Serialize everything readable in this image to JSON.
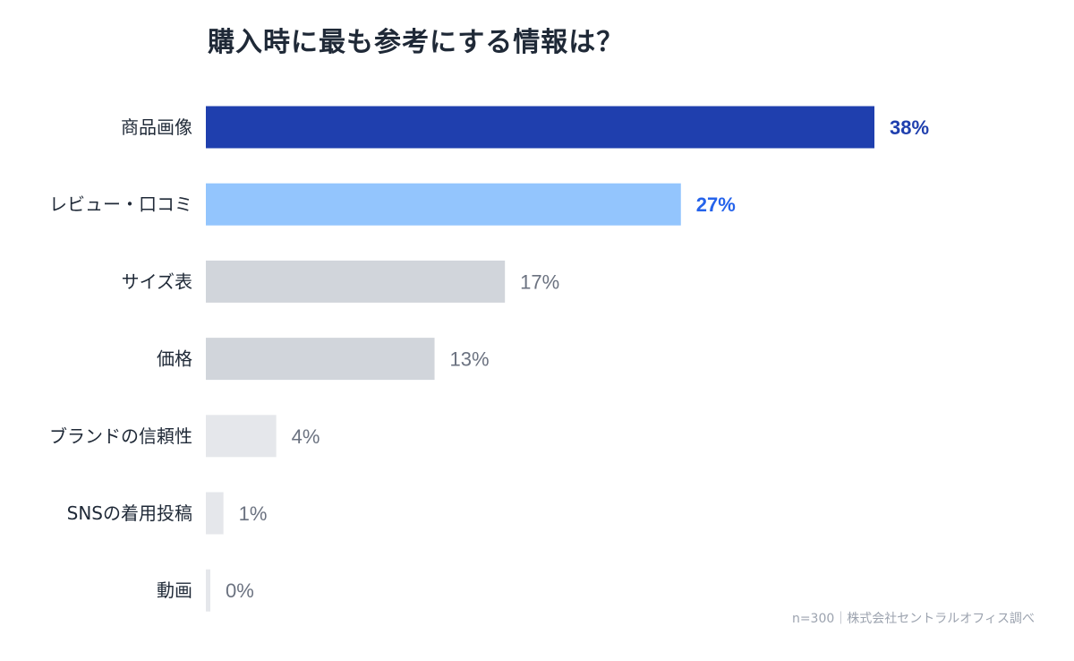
{
  "chart_data": {
    "type": "bar",
    "orientation": "horizontal",
    "title": "購入時に最も参考にする情報は？",
    "categories": [
      "商品画像",
      "レビュー・口コミ",
      "サイズ表",
      "価格",
      "ブランドの信頼性",
      "SNSの着用投稿",
      "動画"
    ],
    "values": [
      38,
      27,
      17,
      13,
      4,
      1,
      0
    ],
    "value_labels": [
      "38%",
      "27%",
      "17%",
      "13%",
      "4%",
      "1%",
      "0%"
    ],
    "unit": "%",
    "xlim": [
      0,
      38
    ],
    "grid": false,
    "bar_colors": [
      "#1f3fae",
      "#93c5fd",
      "#d1d5db",
      "#d1d5db",
      "#e5e7eb",
      "#e5e7eb",
      "#e5e7eb"
    ],
    "label_colors": [
      "#1f3fae",
      "#2563eb",
      "#6b7280",
      "#6b7280",
      "#6b7280",
      "#6b7280",
      "#6b7280"
    ],
    "label_bold": [
      true,
      true,
      false,
      false,
      false,
      false,
      false
    ],
    "note": "n=300｜株式会社セントラルオフィス調べ"
  }
}
